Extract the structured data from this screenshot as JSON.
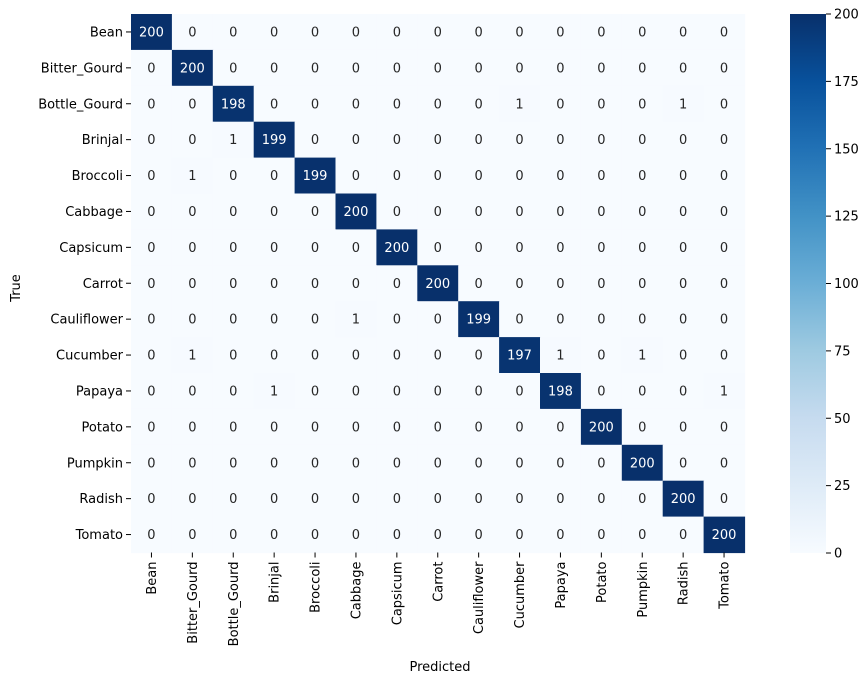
{
  "chart_data": {
    "type": "heatmap",
    "xlabel": "Predicted",
    "ylabel": "True",
    "rows": [
      "Bean",
      "Bitter_Gourd",
      "Bottle_Gourd",
      "Brinjal",
      "Broccoli",
      "Cabbage",
      "Capsicum",
      "Carrot",
      "Cauliflower",
      "Cucumber",
      "Papaya",
      "Potato",
      "Pumpkin",
      "Radish",
      "Tomato"
    ],
    "cols": [
      "Bean",
      "Bitter_Gourd",
      "Bottle_Gourd",
      "Brinjal",
      "Broccoli",
      "Cabbage",
      "Capsicum",
      "Carrot",
      "Cauliflower",
      "Cucumber",
      "Papaya",
      "Potato",
      "Pumpkin",
      "Radish",
      "Tomato"
    ],
    "values": [
      [
        200,
        0,
        0,
        0,
        0,
        0,
        0,
        0,
        0,
        0,
        0,
        0,
        0,
        0,
        0
      ],
      [
        0,
        200,
        0,
        0,
        0,
        0,
        0,
        0,
        0,
        0,
        0,
        0,
        0,
        0,
        0
      ],
      [
        0,
        0,
        198,
        0,
        0,
        0,
        0,
        0,
        0,
        1,
        0,
        0,
        0,
        1,
        0
      ],
      [
        0,
        0,
        1,
        199,
        0,
        0,
        0,
        0,
        0,
        0,
        0,
        0,
        0,
        0,
        0
      ],
      [
        0,
        1,
        0,
        0,
        199,
        0,
        0,
        0,
        0,
        0,
        0,
        0,
        0,
        0,
        0
      ],
      [
        0,
        0,
        0,
        0,
        0,
        200,
        0,
        0,
        0,
        0,
        0,
        0,
        0,
        0,
        0
      ],
      [
        0,
        0,
        0,
        0,
        0,
        0,
        200,
        0,
        0,
        0,
        0,
        0,
        0,
        0,
        0
      ],
      [
        0,
        0,
        0,
        0,
        0,
        0,
        0,
        200,
        0,
        0,
        0,
        0,
        0,
        0,
        0
      ],
      [
        0,
        0,
        0,
        0,
        0,
        1,
        0,
        0,
        199,
        0,
        0,
        0,
        0,
        0,
        0
      ],
      [
        0,
        1,
        0,
        0,
        0,
        0,
        0,
        0,
        0,
        197,
        1,
        0,
        1,
        0,
        0
      ],
      [
        0,
        0,
        0,
        1,
        0,
        0,
        0,
        0,
        0,
        0,
        198,
        0,
        0,
        0,
        1
      ],
      [
        0,
        0,
        0,
        0,
        0,
        0,
        0,
        0,
        0,
        0,
        0,
        200,
        0,
        0,
        0
      ],
      [
        0,
        0,
        0,
        0,
        0,
        0,
        0,
        0,
        0,
        0,
        0,
        0,
        200,
        0,
        0
      ],
      [
        0,
        0,
        0,
        0,
        0,
        0,
        0,
        0,
        0,
        0,
        0,
        0,
        0,
        200,
        0
      ],
      [
        0,
        0,
        0,
        0,
        0,
        0,
        0,
        0,
        0,
        0,
        0,
        0,
        0,
        0,
        200
      ]
    ],
    "colorbar": {
      "min": 0,
      "max": 200,
      "ticks": [
        0,
        25,
        50,
        75,
        100,
        125,
        150,
        175,
        200
      ],
      "colormap": "Blues",
      "low_color": "#f7fbff",
      "high_color": "#08306b"
    },
    "annotations": true,
    "grid": false,
    "legend": "colorbar-right"
  }
}
